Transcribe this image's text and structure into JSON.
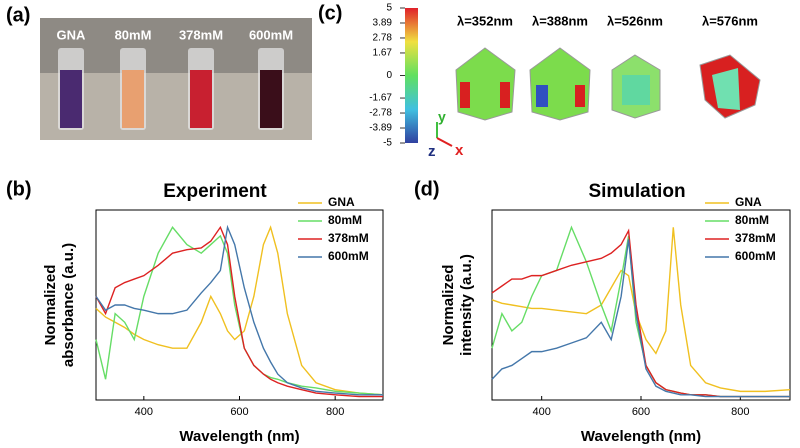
{
  "panel_labels": [
    "(a)",
    "(b)",
    "(c)",
    "(d)"
  ],
  "photo": {
    "labels": [
      "GNA",
      "80mM",
      "378mM",
      "600mM"
    ]
  },
  "colorbar": {
    "ticks": [
      5,
      3.89,
      2.78,
      1.67,
      0,
      -1.67,
      -2.78,
      -3.89,
      -5
    ],
    "lim": [
      -5,
      5
    ]
  },
  "wavelengths": [
    "λ=352nm",
    "λ=388nm",
    "λ=526nm",
    "λ=576nm"
  ],
  "axis_letters": [
    "z",
    "y",
    "x"
  ],
  "chart_data": [
    {
      "type": "line",
      "title": "Experiment",
      "xlabel": "Wavelength (nm)",
      "ylabel": "Normalized absorbance (a.u.)",
      "x": [
        300,
        320,
        340,
        360,
        380,
        400,
        430,
        460,
        490,
        520,
        540,
        560,
        575,
        590,
        610,
        630,
        650,
        665,
        680,
        700,
        730,
        760,
        800,
        850,
        900
      ],
      "xlim": [
        300,
        900
      ],
      "ylim": [
        0,
        1.1
      ],
      "xticks": [
        400,
        600,
        800
      ],
      "series": [
        {
          "name": "GNA",
          "color": "#f0c020",
          "values": [
            0.53,
            0.48,
            0.45,
            0.42,
            0.38,
            0.35,
            0.32,
            0.3,
            0.3,
            0.45,
            0.6,
            0.5,
            0.4,
            0.35,
            0.4,
            0.6,
            0.9,
            1.0,
            0.85,
            0.5,
            0.2,
            0.1,
            0.06,
            0.04,
            0.03
          ]
        },
        {
          "name": "80mM",
          "color": "#66dd66",
          "values": [
            0.35,
            0.12,
            0.5,
            0.45,
            0.35,
            0.6,
            0.85,
            1.0,
            0.9,
            0.85,
            0.9,
            0.95,
            0.85,
            0.55,
            0.3,
            0.2,
            0.15,
            0.13,
            0.12,
            0.1,
            0.08,
            0.07,
            0.05,
            0.04,
            0.03
          ]
        },
        {
          "name": "378mM",
          "color": "#dd2222",
          "values": [
            0.6,
            0.5,
            0.65,
            0.68,
            0.7,
            0.72,
            0.78,
            0.85,
            0.87,
            0.88,
            0.92,
            1.0,
            0.9,
            0.6,
            0.3,
            0.2,
            0.15,
            0.12,
            0.1,
            0.08,
            0.06,
            0.04,
            0.03,
            0.02,
            0.02
          ]
        },
        {
          "name": "600mM",
          "color": "#4477aa",
          "values": [
            0.6,
            0.52,
            0.55,
            0.55,
            0.53,
            0.52,
            0.5,
            0.5,
            0.52,
            0.62,
            0.68,
            0.75,
            1.0,
            0.9,
            0.65,
            0.45,
            0.3,
            0.22,
            0.15,
            0.1,
            0.07,
            0.05,
            0.04,
            0.03,
            0.03
          ]
        }
      ]
    },
    {
      "type": "line",
      "title": "Simulation",
      "xlabel": "Wavelength (nm)",
      "ylabel": "Normalized intensity (a.u.)",
      "x": [
        300,
        320,
        340,
        360,
        380,
        400,
        430,
        460,
        490,
        520,
        540,
        560,
        575,
        590,
        610,
        630,
        650,
        665,
        680,
        700,
        730,
        760,
        800,
        850,
        900
      ],
      "xlim": [
        300,
        900
      ],
      "ylim": [
        0,
        1.1
      ],
      "xticks": [
        400,
        600,
        800
      ],
      "series": [
        {
          "name": "GNA",
          "color": "#f0c020",
          "values": [
            0.58,
            0.56,
            0.55,
            0.54,
            0.53,
            0.53,
            0.52,
            0.51,
            0.5,
            0.55,
            0.65,
            0.75,
            0.72,
            0.5,
            0.35,
            0.27,
            0.4,
            1.0,
            0.55,
            0.2,
            0.1,
            0.07,
            0.05,
            0.05,
            0.06
          ]
        },
        {
          "name": "80mM",
          "color": "#66dd66",
          "values": [
            0.3,
            0.5,
            0.4,
            0.45,
            0.6,
            0.72,
            0.75,
            1.0,
            0.8,
            0.55,
            0.4,
            0.7,
            0.95,
            0.45,
            0.2,
            0.1,
            0.06,
            0.05,
            0.04,
            0.03,
            0.03,
            0.02,
            0.02,
            0.02,
            0.02
          ]
        },
        {
          "name": "378mM",
          "color": "#dd2222",
          "values": [
            0.62,
            0.66,
            0.7,
            0.7,
            0.72,
            0.72,
            0.75,
            0.78,
            0.8,
            0.82,
            0.85,
            0.9,
            0.98,
            0.55,
            0.2,
            0.1,
            0.06,
            0.05,
            0.04,
            0.03,
            0.03,
            0.02,
            0.02,
            0.02,
            0.02
          ]
        },
        {
          "name": "600mM",
          "color": "#4477aa",
          "values": [
            0.12,
            0.18,
            0.2,
            0.24,
            0.28,
            0.28,
            0.3,
            0.33,
            0.36,
            0.45,
            0.35,
            0.6,
            0.93,
            0.5,
            0.18,
            0.08,
            0.05,
            0.04,
            0.03,
            0.03,
            0.02,
            0.02,
            0.02,
            0.02,
            0.02
          ]
        }
      ]
    }
  ]
}
